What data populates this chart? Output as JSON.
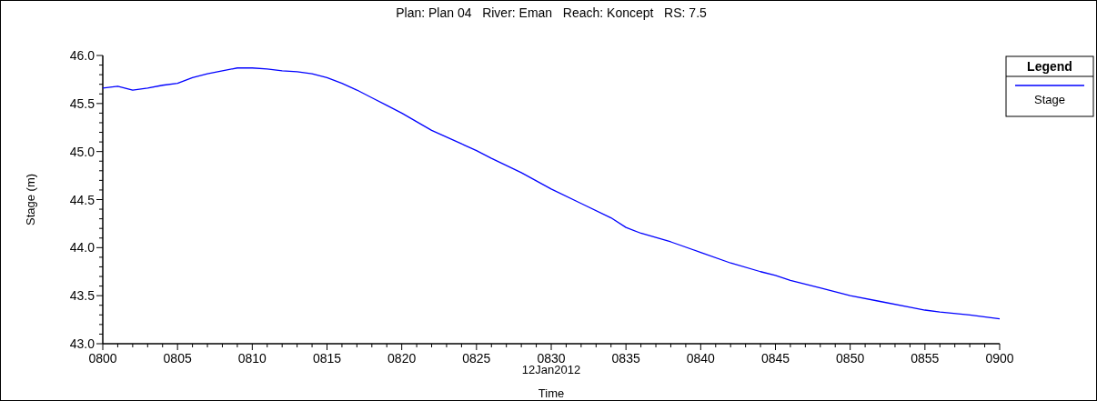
{
  "chart_data": {
    "type": "line",
    "title": "Plan: Plan 04   River: Eman   Reach: Koncept   RS: 7.5",
    "xlabel": "Time",
    "ylabel": "Stage (m)",
    "legend_title": "Legend",
    "legend": "top right",
    "grid": false,
    "annotations": [
      "12Jan2012"
    ],
    "x": [
      "2012-01-12T08:00",
      "2012-01-12T08:01",
      "2012-01-12T08:02",
      "2012-01-12T08:03",
      "2012-01-12T08:04",
      "2012-01-12T08:05",
      "2012-01-12T08:06",
      "2012-01-12T08:07",
      "2012-01-12T08:08",
      "2012-01-12T08:09",
      "2012-01-12T08:10",
      "2012-01-12T08:11",
      "2012-01-12T08:12",
      "2012-01-12T08:13",
      "2012-01-12T08:14",
      "2012-01-12T08:15",
      "2012-01-12T08:16",
      "2012-01-12T08:17",
      "2012-01-12T08:18",
      "2012-01-12T08:19",
      "2012-01-12T08:20",
      "2012-01-12T08:22",
      "2012-01-12T08:24",
      "2012-01-12T08:25",
      "2012-01-12T08:26",
      "2012-01-12T08:28",
      "2012-01-12T08:30",
      "2012-01-12T08:32",
      "2012-01-12T08:34",
      "2012-01-12T08:35",
      "2012-01-12T08:36",
      "2012-01-12T08:38",
      "2012-01-12T08:40",
      "2012-01-12T08:42",
      "2012-01-12T08:44",
      "2012-01-12T08:45",
      "2012-01-12T08:46",
      "2012-01-12T08:48",
      "2012-01-12T08:50",
      "2012-01-12T08:52",
      "2012-01-12T08:54",
      "2012-01-12T08:55",
      "2012-01-12T08:56",
      "2012-01-12T08:58",
      "2012-01-12T09:00"
    ],
    "series": [
      {
        "name": "Stage",
        "color": "#0000ff",
        "values": [
          45.66,
          45.68,
          45.64,
          45.66,
          45.69,
          45.71,
          45.77,
          45.81,
          45.84,
          45.87,
          45.87,
          45.86,
          45.84,
          45.83,
          45.81,
          45.77,
          45.71,
          45.64,
          45.56,
          45.48,
          45.4,
          45.22,
          45.08,
          45.01,
          44.93,
          44.78,
          44.61,
          44.46,
          44.31,
          44.21,
          44.15,
          44.06,
          43.95,
          43.84,
          43.75,
          43.71,
          43.66,
          43.58,
          43.5,
          43.44,
          43.38,
          43.35,
          43.33,
          43.3,
          43.26
        ]
      }
    ],
    "xlim": [
      "2012-01-12T08:00",
      "2012-01-12T09:00"
    ],
    "xticks": [
      {
        "value": "2012-01-12T08:00",
        "label": "0800"
      },
      {
        "value": "2012-01-12T08:05",
        "label": "0805"
      },
      {
        "value": "2012-01-12T08:10",
        "label": "0810"
      },
      {
        "value": "2012-01-12T08:15",
        "label": "0815"
      },
      {
        "value": "2012-01-12T08:20",
        "label": "0820"
      },
      {
        "value": "2012-01-12T08:25",
        "label": "0825"
      },
      {
        "value": "2012-01-12T08:30",
        "label": "0830"
      },
      {
        "value": "2012-01-12T08:35",
        "label": "0835"
      },
      {
        "value": "2012-01-12T08:40",
        "label": "0840"
      },
      {
        "value": "2012-01-12T08:45",
        "label": "0845"
      },
      {
        "value": "2012-01-12T08:50",
        "label": "0850"
      },
      {
        "value": "2012-01-12T08:55",
        "label": "0855"
      },
      {
        "value": "2012-01-12T09:00",
        "label": "0900"
      }
    ],
    "ylim": [
      43.0,
      46.0
    ],
    "yticks": [
      {
        "value": 43.0,
        "label": "43.0"
      },
      {
        "value": 43.5,
        "label": "43.5"
      },
      {
        "value": 44.0,
        "label": "44.0"
      },
      {
        "value": 44.5,
        "label": "44.5"
      },
      {
        "value": 45.0,
        "label": "45.0"
      },
      {
        "value": 45.5,
        "label": "45.5"
      },
      {
        "value": 46.0,
        "label": "46.0"
      }
    ],
    "marker": "none",
    "line_style": "solid"
  }
}
